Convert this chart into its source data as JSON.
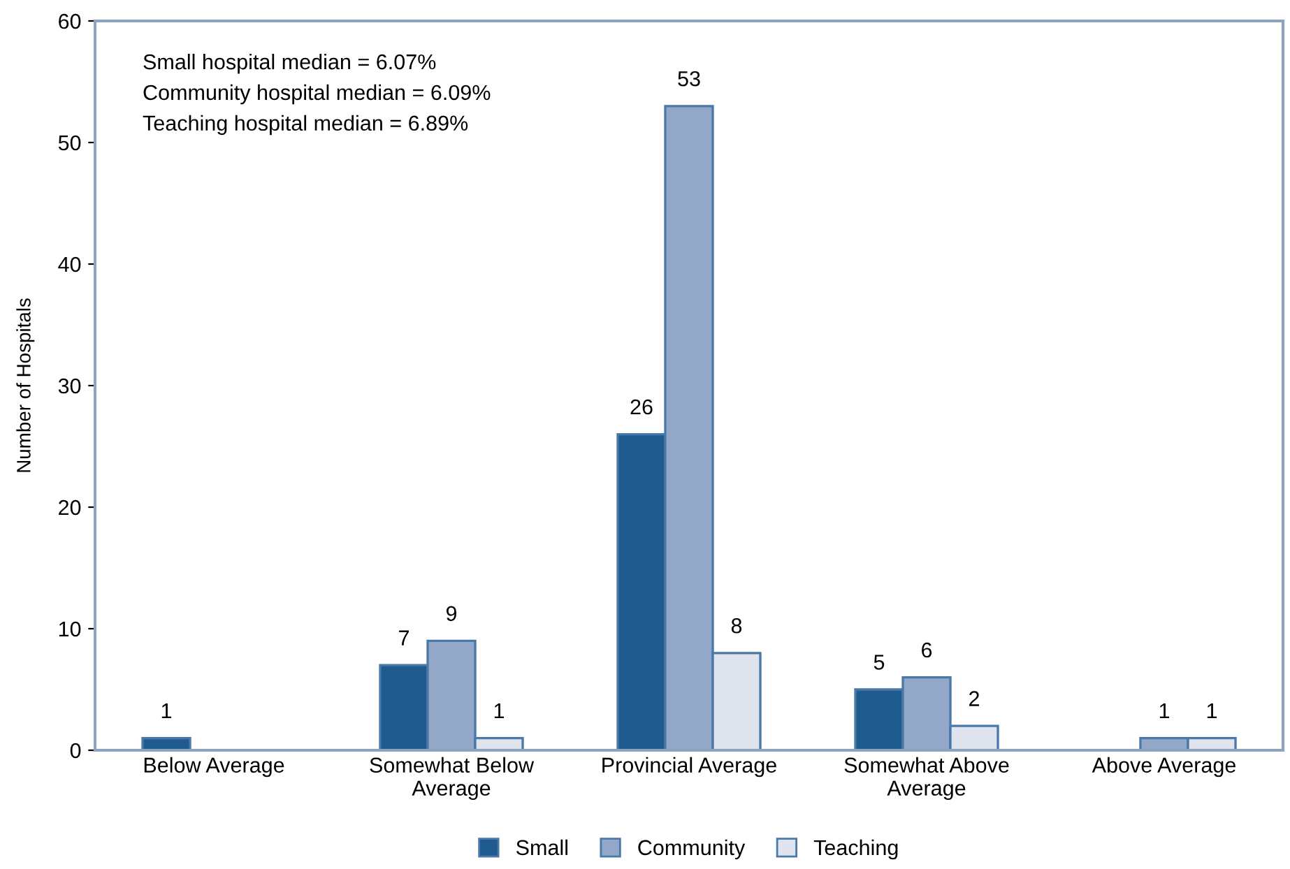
{
  "chart_data": {
    "type": "bar",
    "ylabel": "Number of Hospitals",
    "categories": [
      "Below Average",
      "Somewhat Below\nAverage",
      "Provincial Average",
      "Somewhat Above\nAverage",
      "Above Average"
    ],
    "series": [
      {
        "name": "Small",
        "color": "#1f5b8e",
        "values": [
          1,
          7,
          26,
          5,
          null
        ]
      },
      {
        "name": "Community",
        "color": "#93a7c8",
        "values": [
          null,
          9,
          53,
          6,
          1
        ]
      },
      {
        "name": "Teaching",
        "color": "#dfe4ef",
        "values": [
          null,
          1,
          8,
          2,
          1
        ]
      }
    ],
    "ylim": [
      0,
      60
    ],
    "yticks": [
      0,
      10,
      20,
      30,
      40,
      50,
      60
    ],
    "grid": false,
    "legend": "bottom",
    "data_labels": true,
    "annotations": [
      "Small hospital median = 6.07%",
      "Community hospital median = 6.09%",
      "Teaching hospital median = 6.89%"
    ]
  }
}
